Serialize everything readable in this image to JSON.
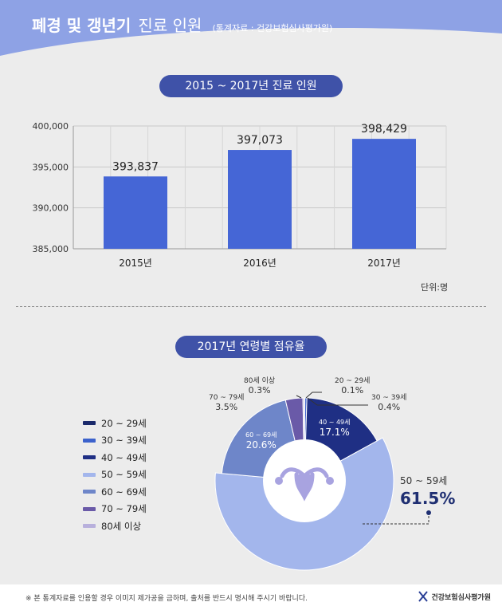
{
  "header": {
    "title_bold": "폐경 및 갱년기",
    "title_light": "진료 인원",
    "source": "(통계자료 : 건강보험심사평가원)"
  },
  "colors": {
    "header": "#8ea2e5",
    "bar": "#4566d6",
    "pill": "#3f52a8"
  },
  "section1": {
    "title": "2015 ~ 2017년 진료 인원",
    "unit": "단위:명"
  },
  "section2": {
    "title": "2017년 연령별 점유율"
  },
  "chart_data": [
    {
      "type": "bar",
      "title": "2015 ~ 2017년 진료 인원",
      "categories": [
        "2015년",
        "2016년",
        "2017년"
      ],
      "values": [
        393837,
        397073,
        398429
      ],
      "value_labels": [
        "393,837",
        "397,073",
        "398,429"
      ],
      "ylim": [
        385000,
        400000
      ],
      "yticks": [
        385000,
        390000,
        395000,
        400000
      ],
      "ytick_labels": [
        "385,000",
        "390,000",
        "395,000",
        "400,000"
      ],
      "ylabel": "단위:명",
      "grid": true
    },
    {
      "type": "pie",
      "title": "2017년 연령별 점유율",
      "slices": [
        {
          "label": "20 ~ 29세",
          "callout": "20 ~ 29세",
          "value": 0.1,
          "value_label": "0.1%",
          "color": "#1b2a6b"
        },
        {
          "label": "30 ~ 39세",
          "callout": "30 ~ 39세",
          "value": 0.4,
          "value_label": "0.4%",
          "color": "#3c62cc"
        },
        {
          "label": "40 ~ 49세",
          "callout": "40 ~ 49세",
          "value": 17.1,
          "value_label": "17.1%",
          "color": "#1f2f84"
        },
        {
          "label": "50 ~ 59세",
          "callout": "50 ~ 59세",
          "value": 61.5,
          "value_label": "61.5%",
          "color": "#a3b6ec"
        },
        {
          "label": "60 ~ 69세",
          "callout": "60 ~ 69세",
          "value": 20.6,
          "value_label": "20.6%",
          "color": "#6e86c9"
        },
        {
          "label": "70 ~ 79세",
          "callout": "70 ~ 79세",
          "value": 3.5,
          "value_label": "3.5%",
          "color": "#6a5aa8"
        },
        {
          "label": "80세 이상",
          "callout": "80세 이상",
          "value": 0.3,
          "value_label": "0.3%",
          "color": "#b8b0dc"
        }
      ],
      "legend_position": "left"
    }
  ],
  "footer": {
    "note": "※ 본 통계자료를 인용할 경우 이미지 제가공을 금하며, 출처를 반드시 명시해 주시기 바랍니다.",
    "logo_text": "건강보험심사평가원"
  }
}
